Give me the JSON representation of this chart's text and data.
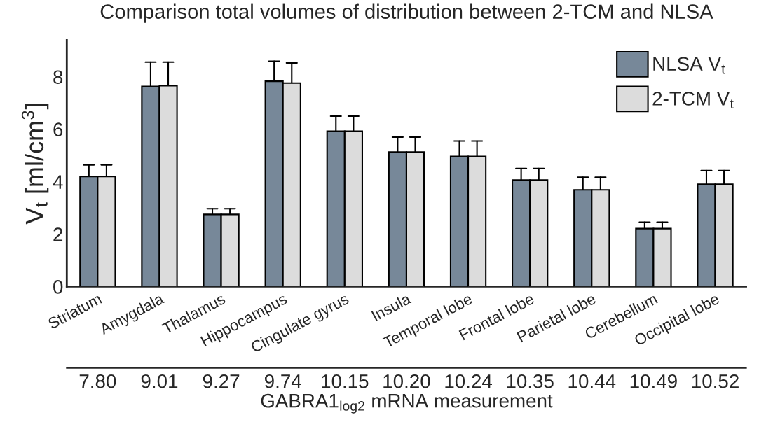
{
  "chart_data": {
    "type": "bar",
    "title": "Comparison total volumes of distribution between 2-TCM and NLSA",
    "ylabel": "V$_{t}$ [ml/cm$^{3}$]",
    "x2label": "GABRA1$_{log2}$ mRNA measurement",
    "categories": [
      "Striatum",
      "Amygdala",
      "Thalamus",
      "Hippocampus",
      "Cingulate gyrus",
      "Insula",
      "Temporal lobe",
      "Frontal lobe",
      "Parietal lobe",
      "Cerebellum",
      "Occipital lobe"
    ],
    "series": [
      {
        "name": "NLSA V$_{t}$",
        "color": "#778899",
        "values": [
          4.2,
          7.63,
          2.75,
          7.83,
          5.92,
          5.13,
          4.96,
          4.06,
          3.69,
          2.21,
          3.9
        ],
        "errors": [
          [
            4.2,
            4.64
          ],
          [
            7.63,
            8.56
          ],
          [
            2.75,
            2.97
          ],
          [
            7.83,
            8.59
          ],
          [
            5.92,
            6.5
          ],
          [
            5.13,
            5.7
          ],
          [
            4.96,
            5.55
          ],
          [
            4.06,
            4.5
          ],
          [
            3.69,
            4.17
          ],
          [
            2.21,
            2.45
          ],
          [
            3.9,
            4.42
          ]
        ]
      },
      {
        "name": "2-TCM V$_{t}$",
        "color": "#dcdcdc",
        "values": [
          4.2,
          7.66,
          2.75,
          7.76,
          5.92,
          5.13,
          4.96,
          4.06,
          3.69,
          2.21,
          3.9
        ],
        "errors": [
          [
            4.2,
            4.64
          ],
          [
            7.66,
            8.56
          ],
          [
            2.75,
            2.97
          ],
          [
            7.76,
            8.53
          ],
          [
            5.92,
            6.5
          ],
          [
            5.13,
            5.7
          ],
          [
            4.96,
            5.55
          ],
          [
            4.06,
            4.5
          ],
          [
            3.69,
            4.17
          ],
          [
            2.21,
            2.45
          ],
          [
            3.9,
            4.42
          ]
        ]
      }
    ],
    "annotations": [
      "7.80",
      "9.01",
      "9.27",
      "9.74",
      "10.15",
      "10.20",
      "10.24",
      "10.35",
      "10.44",
      "10.49",
      "10.52"
    ],
    "ylim": [
      0,
      9.4
    ],
    "yticks": [
      0,
      2,
      4,
      6,
      8
    ],
    "grid": false,
    "legend": "top right"
  }
}
